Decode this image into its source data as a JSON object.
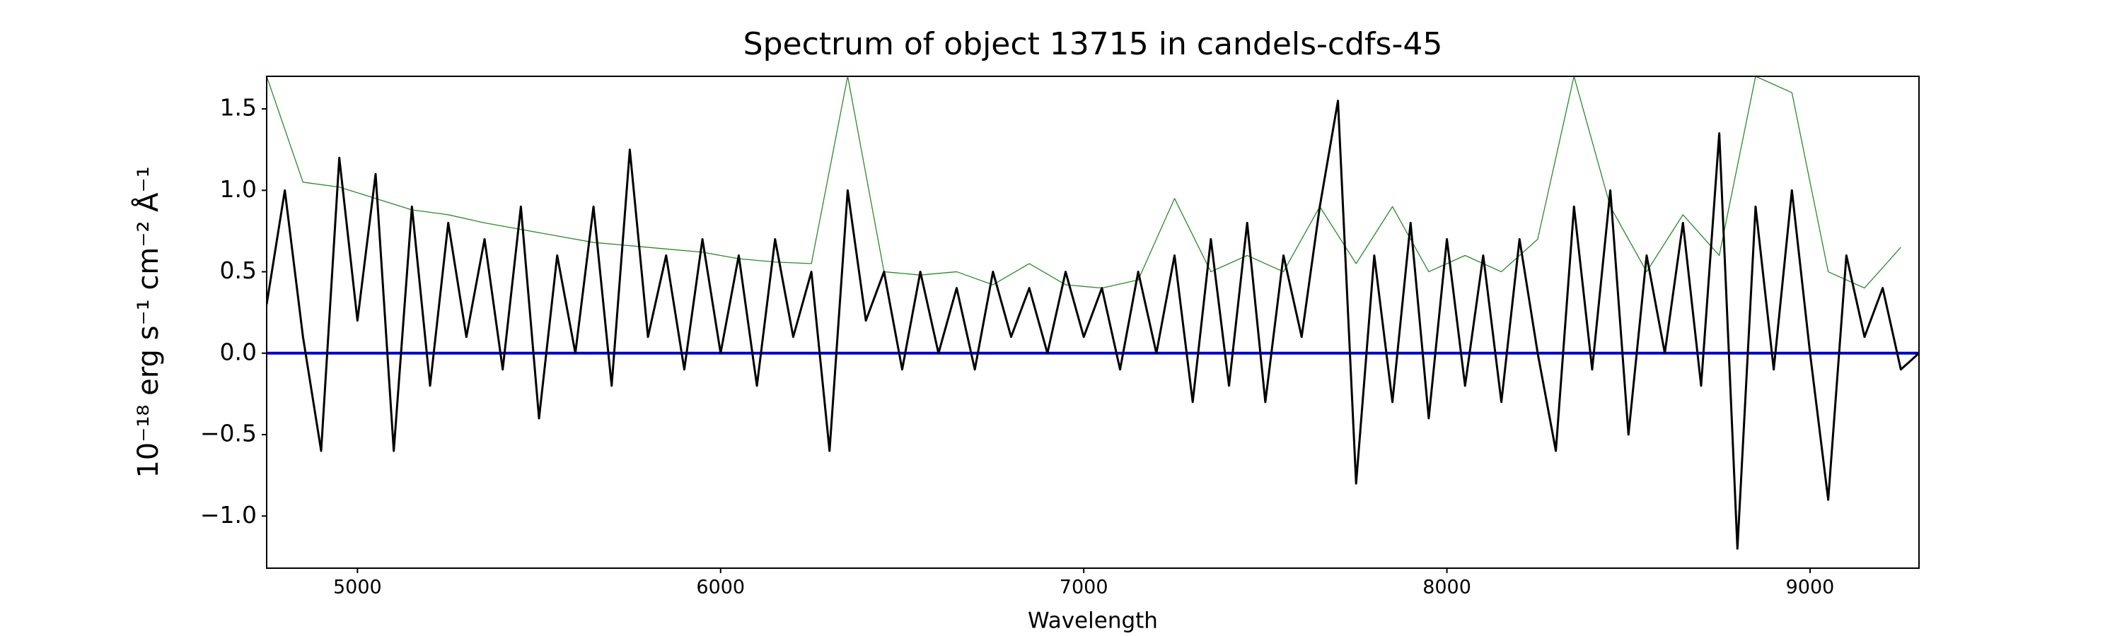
{
  "chart_data": {
    "type": "line",
    "title": "Spectrum of object 13715 in candels-cdfs-45",
    "xlabel": "Wavelength",
    "ylabel": "10⁻¹⁸ erg s⁻¹ cm⁻² Å⁻¹",
    "xlim": [
      4750,
      9300
    ],
    "ylim": [
      -1.32,
      1.7
    ],
    "xticks": [
      5000,
      6000,
      7000,
      8000,
      9000
    ],
    "yticks": [
      {
        "value": -1,
        "label": "−1.0"
      },
      {
        "value": -0.5,
        "label": "−0.5"
      },
      {
        "value": 0,
        "label": "0.0"
      },
      {
        "value": 0.5,
        "label": "0.5"
      },
      {
        "value": 1,
        "label": "1.0"
      },
      {
        "value": 1.5,
        "label": "1.5"
      }
    ],
    "grid": false,
    "series": [
      {
        "color": "#2a8a2a",
        "width": 1.3,
        "x": [
          4750,
          4850,
          4950,
          5050,
          5150,
          5250,
          5350,
          5450,
          5550,
          5650,
          5750,
          5850,
          5950,
          6050,
          6150,
          6250,
          6350,
          6450,
          6550,
          6650,
          6750,
          6850,
          6950,
          7050,
          7150,
          7250,
          7350,
          7450,
          7550,
          7650,
          7750,
          7850,
          7950,
          8050,
          8150,
          8250,
          8350,
          8450,
          8550,
          8650,
          8750,
          8850,
          8950,
          9050,
          9150,
          9250
        ],
        "values": [
          1.7,
          1.05,
          1.02,
          0.95,
          0.88,
          0.85,
          0.8,
          0.76,
          0.72,
          0.68,
          0.66,
          0.64,
          0.62,
          0.58,
          0.56,
          0.55,
          1.7,
          0.5,
          0.48,
          0.5,
          0.42,
          0.55,
          0.42,
          0.4,
          0.45,
          0.95,
          0.5,
          0.6,
          0.5,
          0.9,
          0.55,
          0.9,
          0.5,
          0.6,
          0.5,
          0.7,
          1.7,
          0.9,
          0.5,
          0.85,
          0.6,
          1.7,
          1.6,
          0.5,
          0.4,
          0.65
        ]
      },
      {
        "color": "#0000cc",
        "width": 4,
        "x": [
          4750,
          9300
        ],
        "values": [
          0,
          0
        ]
      },
      {
        "color": "#000000",
        "width": 3,
        "x": [
          4750,
          4800,
          4850,
          4900,
          4950,
          5000,
          5050,
          5100,
          5150,
          5200,
          5250,
          5300,
          5350,
          5400,
          5450,
          5500,
          5550,
          5600,
          5650,
          5700,
          5750,
          5800,
          5850,
          5900,
          5950,
          6000,
          6050,
          6100,
          6150,
          6200,
          6250,
          6300,
          6350,
          6400,
          6450,
          6500,
          6550,
          6600,
          6650,
          6700,
          6750,
          6800,
          6850,
          6900,
          6950,
          7000,
          7050,
          7100,
          7150,
          7200,
          7250,
          7300,
          7350,
          7400,
          7450,
          7500,
          7550,
          7600,
          7650,
          7700,
          7750,
          7800,
          7850,
          7900,
          7950,
          8000,
          8050,
          8100,
          8150,
          8200,
          8250,
          8300,
          8350,
          8400,
          8450,
          8500,
          8550,
          8600,
          8650,
          8700,
          8750,
          8800,
          8850,
          8900,
          8950,
          9000,
          9050,
          9100,
          9150,
          9200,
          9250,
          9300
        ],
        "values": [
          0.3,
          1.0,
          0.1,
          -0.6,
          1.2,
          0.2,
          1.1,
          -0.6,
          0.9,
          -0.2,
          0.8,
          0.1,
          0.7,
          -0.1,
          0.9,
          -0.4,
          0.6,
          0.0,
          0.9,
          -0.2,
          1.25,
          0.1,
          0.6,
          -0.1,
          0.7,
          0.0,
          0.6,
          -0.2,
          0.7,
          0.1,
          0.5,
          -0.6,
          1.0,
          0.2,
          0.5,
          -0.1,
          0.5,
          0.0,
          0.4,
          -0.1,
          0.5,
          0.1,
          0.4,
          0.0,
          0.5,
          0.1,
          0.4,
          -0.1,
          0.5,
          0.0,
          0.6,
          -0.3,
          0.7,
          -0.2,
          0.8,
          -0.3,
          0.6,
          0.1,
          0.9,
          1.55,
          -0.8,
          0.6,
          -0.3,
          0.8,
          -0.4,
          0.7,
          -0.2,
          0.6,
          -0.3,
          0.7,
          0.0,
          -0.6,
          0.9,
          -0.1,
          1.0,
          -0.5,
          0.6,
          0.0,
          0.8,
          -0.2,
          1.35,
          -1.2,
          0.9,
          -0.1,
          1.0,
          0.0,
          -0.9,
          0.6,
          0.1,
          0.4,
          -0.1,
          0.0
        ]
      }
    ]
  }
}
